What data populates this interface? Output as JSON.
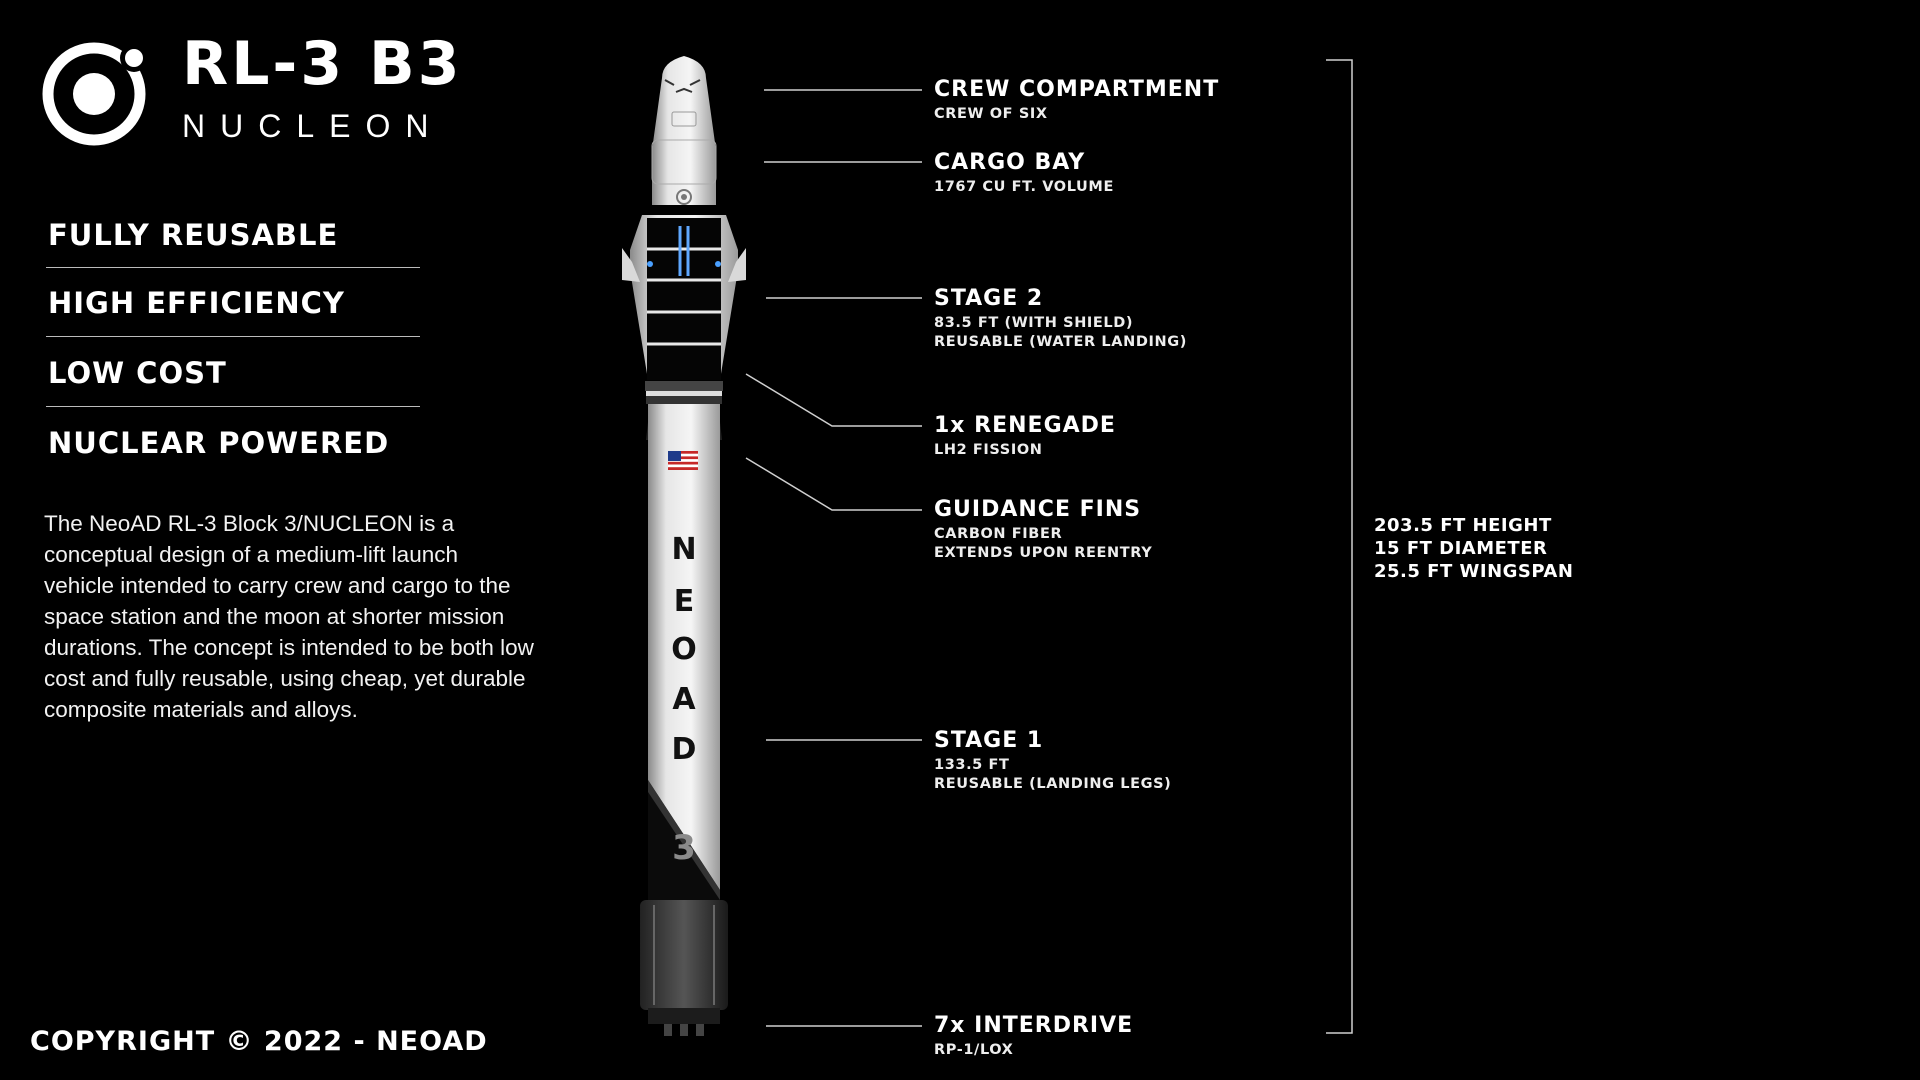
{
  "header": {
    "title": "RL-3 B3",
    "subtitle": "NUCLEON"
  },
  "features": [
    "FULLY REUSABLE",
    "HIGH EFFICIENCY",
    "LOW COST",
    "NUCLEAR POWERED"
  ],
  "description": "The NeoAD RL-3 Block 3/NUCLEON is a conceptual design of a medium-lift launch vehicle intended to carry crew and cargo to the space station and the moon at shorter mission durations. The concept is intended to be both low cost and fully reusable, using cheap, yet durable composite materials and alloys.",
  "callouts": {
    "crew": {
      "title": "CREW COMPARTMENT",
      "lines": [
        "CREW OF SIX"
      ]
    },
    "cargo": {
      "title": "CARGO BAY",
      "lines": [
        "1767 CU FT. VOLUME"
      ]
    },
    "stage2": {
      "title": "STAGE 2",
      "lines": [
        "83.5 FT (WITH SHIELD)",
        "REUSABLE (WATER LANDING)"
      ]
    },
    "renegade": {
      "title": "1x RENEGADE",
      "lines": [
        "LH2 FISSION"
      ]
    },
    "fins": {
      "title": "GUIDANCE FINS",
      "lines": [
        "CARBON FIBER",
        "EXTENDS UPON REENTRY"
      ]
    },
    "stage1": {
      "title": "STAGE 1",
      "lines": [
        "133.5 FT",
        "REUSABLE (LANDING LEGS)"
      ]
    },
    "interdrive": {
      "title": "7x INTERDRIVE",
      "lines": [
        "RP-1/LOX"
      ]
    }
  },
  "specs": [
    "203.5 FT HEIGHT",
    "15 FT DIAMETER",
    "25.5 FT WINGSPAN"
  ],
  "rocket": {
    "body_letters": [
      "N",
      "E",
      "O",
      "A",
      "D"
    ],
    "stage_mark": "3",
    "flag": "us-flag"
  },
  "copyright": "COPYRIGHT © 2022 - NEOAD"
}
